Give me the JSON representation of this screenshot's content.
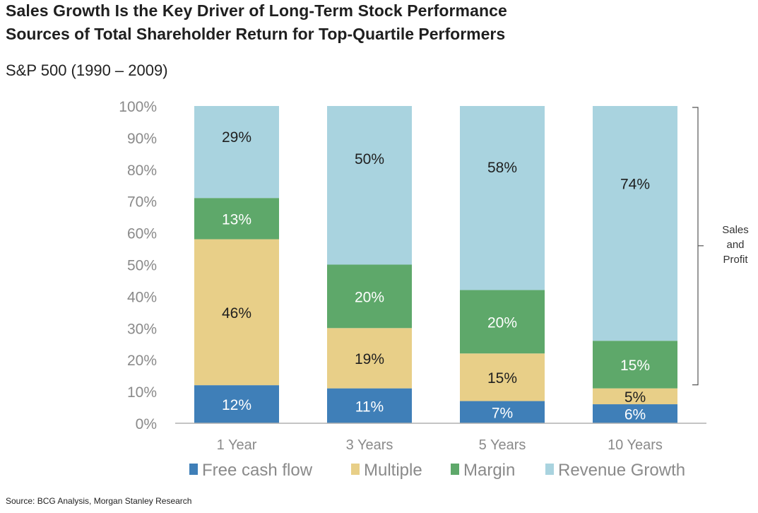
{
  "title": "Sales Growth Is the Key Driver of Long-Term Stock Performance",
  "subtitle": "Sources of Total Shareholder Return for Top-Quartile Performers",
  "subtitle2": "S&P 500 (1990 – 2009)",
  "source": "Source: BCG Analysis, Morgan Stanley Research",
  "chart_data": {
    "type": "bar",
    "stacked": true,
    "categories": [
      "1 Year",
      "3 Years",
      "5 Years",
      "10 Years"
    ],
    "series": [
      {
        "name": "Free cash flow",
        "values": [
          12,
          11,
          7,
          6
        ],
        "labels": [
          "12%",
          "11%",
          "7%",
          "6%"
        ],
        "color": "#3f7fb8",
        "label_color": "#ffffff"
      },
      {
        "name": "Multiple",
        "values": [
          46,
          19,
          15,
          5
        ],
        "labels": [
          "46%",
          "19%",
          "15%",
          "5%"
        ],
        "color": "#e8cf88",
        "label_color": "#1f1f1f"
      },
      {
        "name": "Margin",
        "values": [
          13,
          20,
          20,
          15
        ],
        "labels": [
          "13%",
          "20%",
          "20%",
          "15%"
        ],
        "color": "#5ea86a",
        "label_color": "#ffffff"
      },
      {
        "name": "Revenue Growth",
        "values": [
          29,
          50,
          58,
          74
        ],
        "labels": [
          "29%",
          "50%",
          "58%",
          "74%"
        ],
        "color": "#a9d3df",
        "label_color": "#1f1f1f"
      }
    ],
    "ylim": [
      0,
      100
    ],
    "yticks": [
      "0%",
      "10%",
      "20%",
      "30%",
      "40%",
      "50%",
      "60%",
      "70%",
      "80%",
      "90%",
      "100%"
    ],
    "bracket_label": [
      "Sales",
      "and",
      "Profit"
    ],
    "legend_position": "bottom"
  }
}
